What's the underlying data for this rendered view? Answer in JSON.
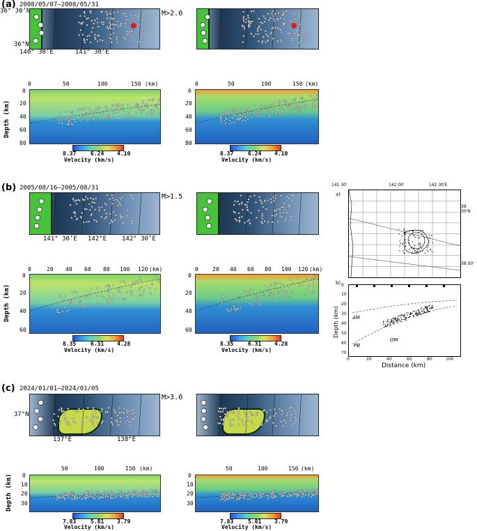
{
  "panels": [
    {
      "label": "(a)",
      "date": "2008/05/07–2008/05/31",
      "mag": "M>2.0",
      "lat_top": "36° 30’N",
      "lat_bottom": "36°N",
      "lon_labels": [
        "140° 30’E",
        "141° 30’E"
      ],
      "dist_ticks": [
        "0",
        "50",
        "100",
        "150"
      ],
      "km": "(km)",
      "depth_ticks": [
        "0",
        "20",
        "40",
        "60",
        "80"
      ],
      "depth_label": "Depth (km)",
      "cbar": [
        "8.37",
        "6.24",
        "4.10"
      ],
      "vel_label": "Velocity (km/s)"
    },
    {
      "label": "(b)",
      "date": "2005/08/16–2005/08/31",
      "mag": "M>1.5",
      "lon_labels": [
        "141° 30’E",
        "142°E",
        "142° 30’E"
      ],
      "dist_ticks": [
        "0",
        "20",
        "40",
        "60",
        "80",
        "100",
        "120"
      ],
      "km": "(km)",
      "depth_ticks": [
        "0",
        "20",
        "40",
        "60"
      ],
      "depth_label": "Depth (km)",
      "cbar": [
        "8.35",
        "6.31",
        "4.28"
      ],
      "vel_label": "Velocity (km/s)"
    },
    {
      "label": "(c)",
      "date": "2024/01/01–2024/01/05",
      "mag": "M>3.0",
      "lat_top": "37°N",
      "lon_labels": [
        "137°E",
        "138°E"
      ],
      "dist_ticks": [
        "50",
        "100",
        "150"
      ],
      "km": "(km)",
      "depth_ticks": [
        "0",
        "10",
        "20",
        "30"
      ],
      "depth_label": "Depth (km)",
      "cbar": [
        "7.83",
        "5.81",
        "3.79"
      ],
      "vel_label": "Velocity (km/s)"
    }
  ],
  "reference": {
    "top_ticks": [
      "141 30'",
      "142 00'",
      "142 30'E"
    ],
    "right_ticks": [
      "38 30'N",
      "38 00'"
    ],
    "label_a": "a)",
    "label_b": "b)",
    "depth_ticks": [
      "0",
      "10",
      "20",
      "30",
      "40",
      "50",
      "60",
      "70"
    ],
    "dist_ticks": [
      "0",
      "20",
      "40",
      "60",
      "80",
      "100"
    ],
    "ylabel": "Depth (km)",
    "xlabel": "Distance (km)",
    "annotations": [
      "AM",
      "PB",
      "OM"
    ]
  }
}
